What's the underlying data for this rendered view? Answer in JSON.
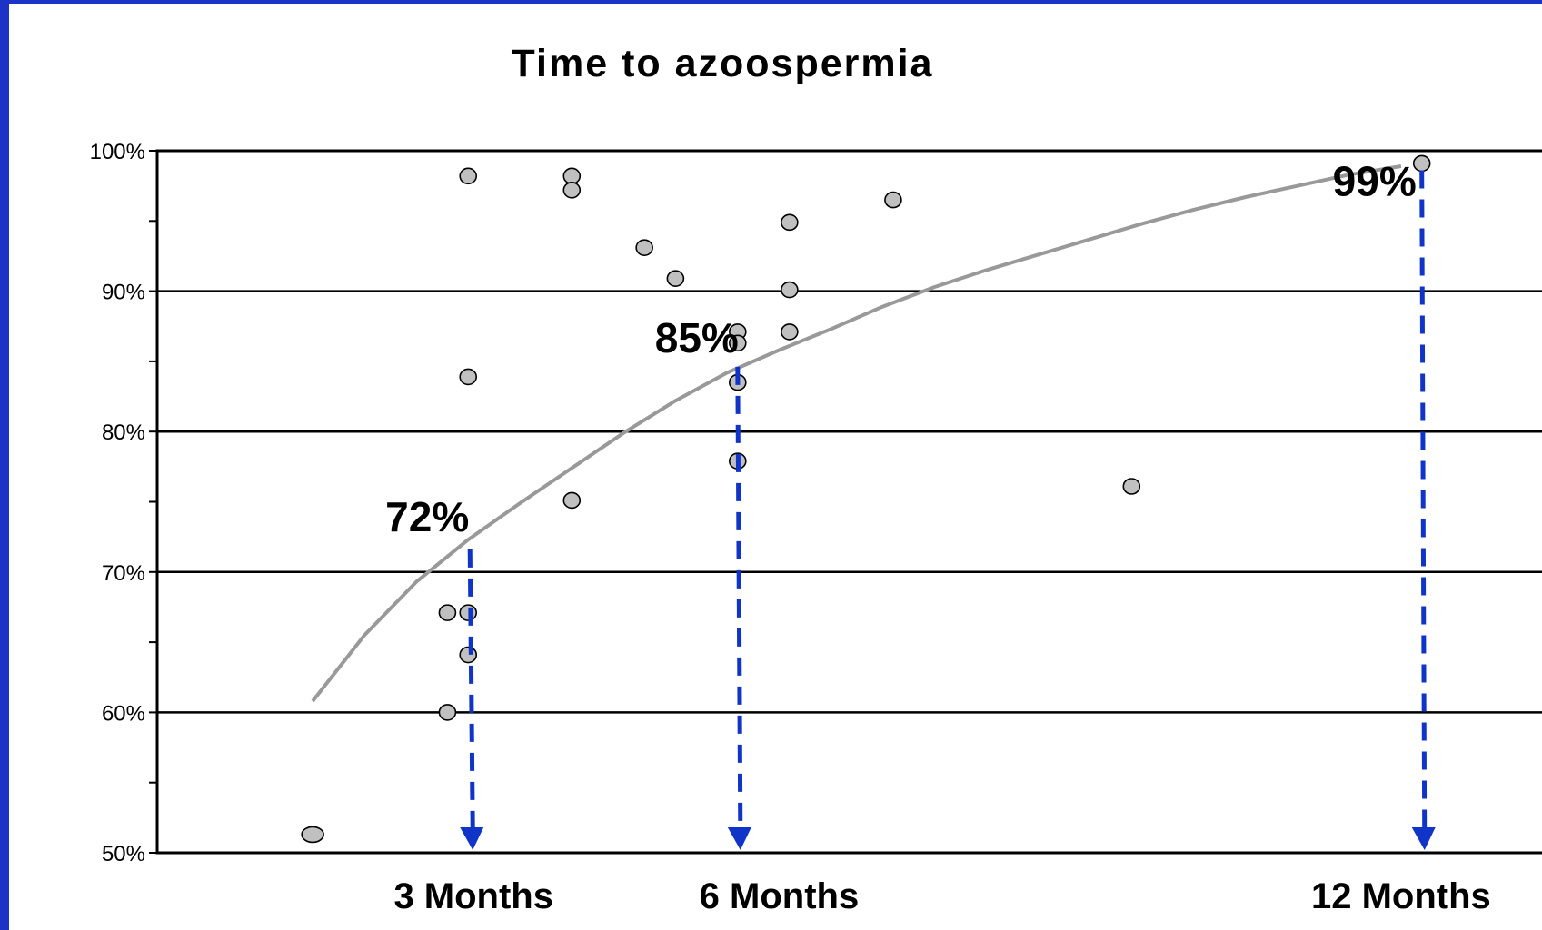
{
  "colors": {
    "border": "#1d33c8",
    "point_fill": "#c0c0c0",
    "trend": "#999999",
    "arrow": "#1034c8"
  },
  "chart_data": {
    "type": "scatter",
    "title": "Time to azoospermia",
    "ylim": [
      50,
      100
    ],
    "xlim": [
      0,
      13.5
    ],
    "grid": true,
    "yticks": [
      "50%",
      "60%",
      "70%",
      "80%",
      "90%",
      "100%"
    ],
    "x_labels": [
      {
        "x": 3,
        "label": "3 Months"
      },
      {
        "x": 6,
        "label": "6 Months"
      },
      {
        "x": 12,
        "label": "12 Months"
      }
    ],
    "points": [
      {
        "x": 1.5,
        "y": 51.3
      },
      {
        "x": 3.0,
        "y": 98.2
      },
      {
        "x": 3.0,
        "y": 83.9
      },
      {
        "x": 2.8,
        "y": 67.1
      },
      {
        "x": 3.0,
        "y": 67.1
      },
      {
        "x": 3.0,
        "y": 64.1
      },
      {
        "x": 2.8,
        "y": 60.0
      },
      {
        "x": 4.0,
        "y": 98.2
      },
      {
        "x": 4.0,
        "y": 97.2
      },
      {
        "x": 4.0,
        "y": 75.1
      },
      {
        "x": 4.7,
        "y": 93.1
      },
      {
        "x": 5.0,
        "y": 90.9
      },
      {
        "x": 5.6,
        "y": 87.1
      },
      {
        "x": 5.6,
        "y": 86.3
      },
      {
        "x": 5.6,
        "y": 83.5
      },
      {
        "x": 5.6,
        "y": 77.9
      },
      {
        "x": 6.1,
        "y": 94.9
      },
      {
        "x": 6.1,
        "y": 90.1
      },
      {
        "x": 6.1,
        "y": 87.1
      },
      {
        "x": 7.1,
        "y": 96.5
      },
      {
        "x": 9.4,
        "y": 76.1
      },
      {
        "x": 12.2,
        "y": 99.1
      }
    ],
    "trend": {
      "x": [
        1.5,
        2.0,
        2.5,
        3.0,
        3.5,
        4.0,
        4.5,
        5.0,
        5.5,
        6.0,
        6.5,
        7.0,
        7.5,
        8.0,
        8.5,
        9.0,
        9.5,
        10.0,
        10.5,
        11.0,
        11.5,
        12.0
      ],
      "y": [
        60.8,
        65.5,
        69.3,
        72.3,
        74.9,
        77.4,
        79.9,
        82.2,
        84.2,
        85.8,
        87.3,
        88.9,
        90.3,
        91.5,
        92.6,
        93.7,
        94.8,
        95.8,
        96.7,
        97.5,
        98.3,
        98.9
      ]
    },
    "annotations": [
      {
        "x": 3.0,
        "y": 72,
        "text": "72%"
      },
      {
        "x": 5.6,
        "y": 85,
        "text": "85%"
      },
      {
        "x": 12.2,
        "y": 99,
        "text": "99%"
      }
    ]
  }
}
